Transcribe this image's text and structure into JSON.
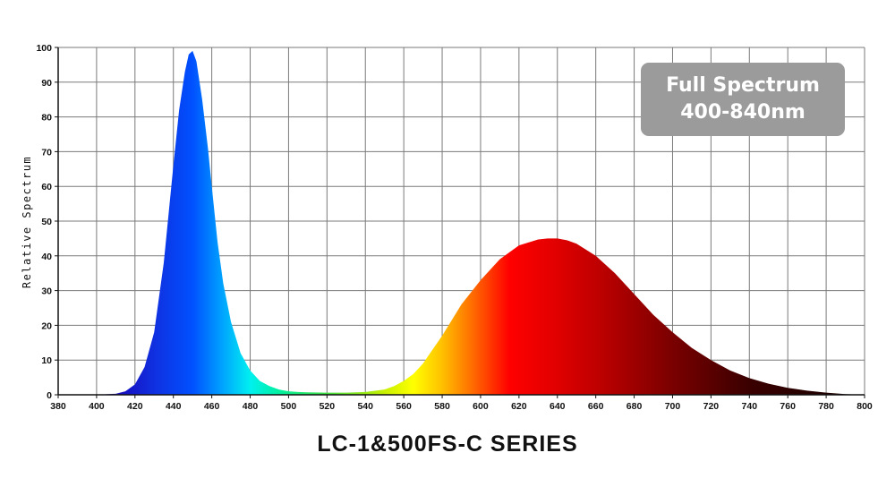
{
  "chart_data": {
    "type": "area",
    "title": "LC-1&500FS-C SERIES",
    "xlabel": "",
    "ylabel": "Relative Spectrum",
    "xlim": [
      380,
      800
    ],
    "ylim": [
      0,
      100
    ],
    "x_ticks": [
      380,
      400,
      420,
      440,
      460,
      480,
      500,
      520,
      540,
      560,
      580,
      600,
      620,
      640,
      660,
      680,
      700,
      720,
      740,
      760,
      780,
      800
    ],
    "y_ticks": [
      0,
      10,
      20,
      30,
      40,
      50,
      60,
      70,
      80,
      90,
      100
    ],
    "grid": true,
    "legend": "none",
    "annotation": {
      "line1": "Full Spectrum",
      "line2": "400-840nm"
    },
    "series": [
      {
        "x": [
          380,
          400,
          410,
          415,
          420,
          425,
          430,
          435,
          440,
          443,
          446,
          448,
          450,
          452,
          455,
          458,
          460,
          463,
          466,
          470,
          475,
          480,
          485,
          490,
          495,
          500,
          505,
          510,
          520,
          530,
          540,
          550,
          555,
          560,
          565,
          570,
          575,
          580,
          590,
          600,
          610,
          620,
          630,
          635,
          640,
          645,
          650,
          660,
          670,
          680,
          690,
          700,
          710,
          720,
          730,
          740,
          750,
          760,
          770,
          780,
          790,
          800
        ],
        "values": [
          0,
          0,
          0.3,
          1,
          3,
          8,
          18,
          38,
          66,
          82,
          93,
          98,
          99,
          96,
          85,
          71,
          60,
          44,
          32,
          21,
          12,
          7,
          4,
          2.5,
          1.5,
          1,
          0.8,
          0.7,
          0.6,
          0.6,
          0.8,
          1.5,
          2.5,
          4,
          6,
          9,
          13,
          17,
          26,
          33,
          39,
          43,
          44.7,
          45,
          45,
          44.5,
          43.5,
          40,
          35,
          29,
          23,
          18,
          13.5,
          10,
          7,
          4.8,
          3.2,
          2,
          1.2,
          0.6,
          0.2,
          0
        ]
      }
    ],
    "colors": {
      "grid": "#7a7a7a",
      "axis": "#111111",
      "badge": "#9b9b9b"
    }
  }
}
